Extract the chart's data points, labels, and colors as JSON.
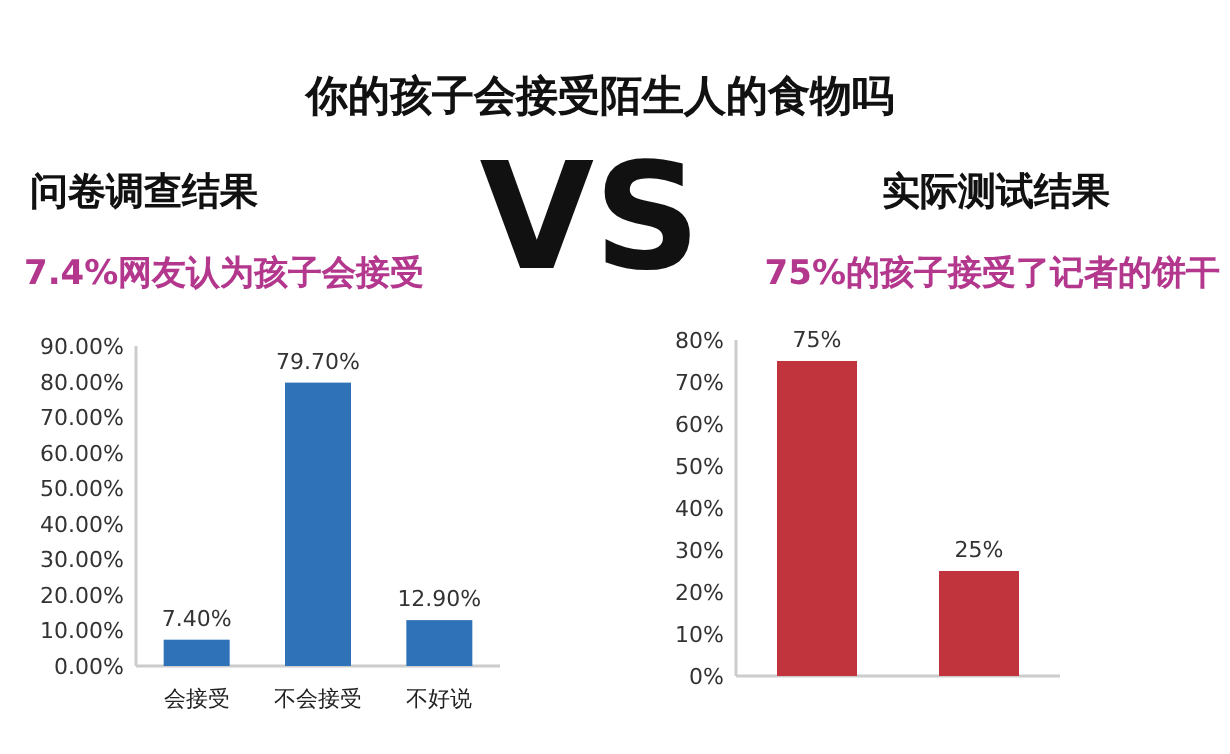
{
  "chart_data": [
    {
      "type": "bar",
      "title": "问卷调查结果",
      "subtitle": "7.4%网友认为孩子会接受",
      "annotations": [
        "你的孩子会接受陌生人的食物吗",
        "VS"
      ],
      "categories": [
        "会接受",
        "不会接受",
        "不好说"
      ],
      "series": [
        {
          "color": "#2f72b8",
          "values": [
            7.4,
            79.7,
            12.9
          ],
          "value_labels": [
            "7.40%",
            "79.70%",
            "12.90%"
          ]
        }
      ],
      "ylim": [
        0,
        90
      ],
      "yticks": [
        {
          "value": 0,
          "label": "0.00%"
        },
        {
          "value": 10,
          "label": "10.00%"
        },
        {
          "value": 20,
          "label": "20.00%"
        },
        {
          "value": 30,
          "label": "30.00%"
        },
        {
          "value": 40,
          "label": "40.00%"
        },
        {
          "value": 50,
          "label": "50.00%"
        },
        {
          "value": 60,
          "label": "60.00%"
        },
        {
          "value": 70,
          "label": "70.00%"
        },
        {
          "value": 80,
          "label": "80.00%"
        },
        {
          "value": 90,
          "label": "90.00%"
        }
      ],
      "grid": false
    },
    {
      "type": "bar",
      "title": "实际测试结果",
      "subtitle": "75%的孩子接受了记者的饼干",
      "categories": [
        null,
        null
      ],
      "series": [
        {
          "color": "#c1343d",
          "values": [
            75,
            25
          ],
          "value_labels": [
            "75%",
            "25%"
          ]
        }
      ],
      "ylim": [
        0,
        80
      ],
      "yticks": [
        {
          "value": 0,
          "label": "0%"
        },
        {
          "value": 10,
          "label": "10%"
        },
        {
          "value": 20,
          "label": "20%"
        },
        {
          "value": 30,
          "label": "30%"
        },
        {
          "value": 40,
          "label": "40%"
        },
        {
          "value": 50,
          "label": "50%"
        },
        {
          "value": 60,
          "label": "60%"
        },
        {
          "value": 70,
          "label": "70%"
        },
        {
          "value": 80,
          "label": "80%"
        }
      ],
      "grid": false
    }
  ]
}
